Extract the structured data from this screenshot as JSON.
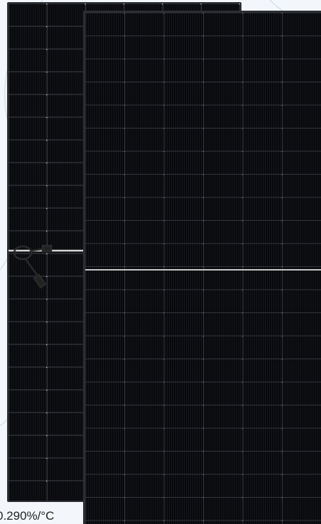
{
  "caption": "0.290%/°C"
}
